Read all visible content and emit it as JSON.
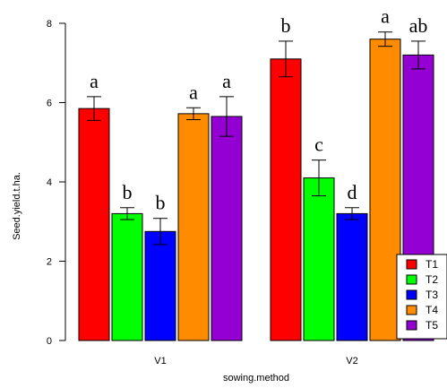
{
  "chart_data": {
    "type": "bar",
    "title": "",
    "xlabel": "sowing.method",
    "ylabel": "Seed.yield.t.ha.",
    "ylim": [
      0,
      8
    ],
    "yticks": [
      "0",
      "2",
      "4",
      "6",
      "8"
    ],
    "categories": [
      "V1",
      "V2"
    ],
    "grid": false,
    "legend_position": "bottom-right",
    "series": [
      {
        "name": "T1",
        "color": "#ff0000",
        "values": [
          5.85,
          7.1
        ],
        "errors": [
          0.3,
          0.45
        ],
        "labels": [
          "a",
          "b"
        ]
      },
      {
        "name": "T2",
        "color": "#00ff00",
        "values": [
          3.2,
          4.1
        ],
        "errors": [
          0.15,
          0.45
        ],
        "labels": [
          "b",
          "c"
        ]
      },
      {
        "name": "T3",
        "color": "#0000ff",
        "values": [
          2.75,
          3.2
        ],
        "errors": [
          0.33,
          0.15
        ],
        "labels": [
          "b",
          "d"
        ]
      },
      {
        "name": "T4",
        "color": "#ff8c00",
        "values": [
          5.72,
          7.6
        ],
        "errors": [
          0.15,
          0.18
        ],
        "labels": [
          "a",
          "a"
        ]
      },
      {
        "name": "T5",
        "color": "#9400d3",
        "values": [
          5.65,
          7.2
        ],
        "errors": [
          0.5,
          0.35
        ],
        "labels": [
          "a",
          "ab"
        ]
      }
    ]
  }
}
